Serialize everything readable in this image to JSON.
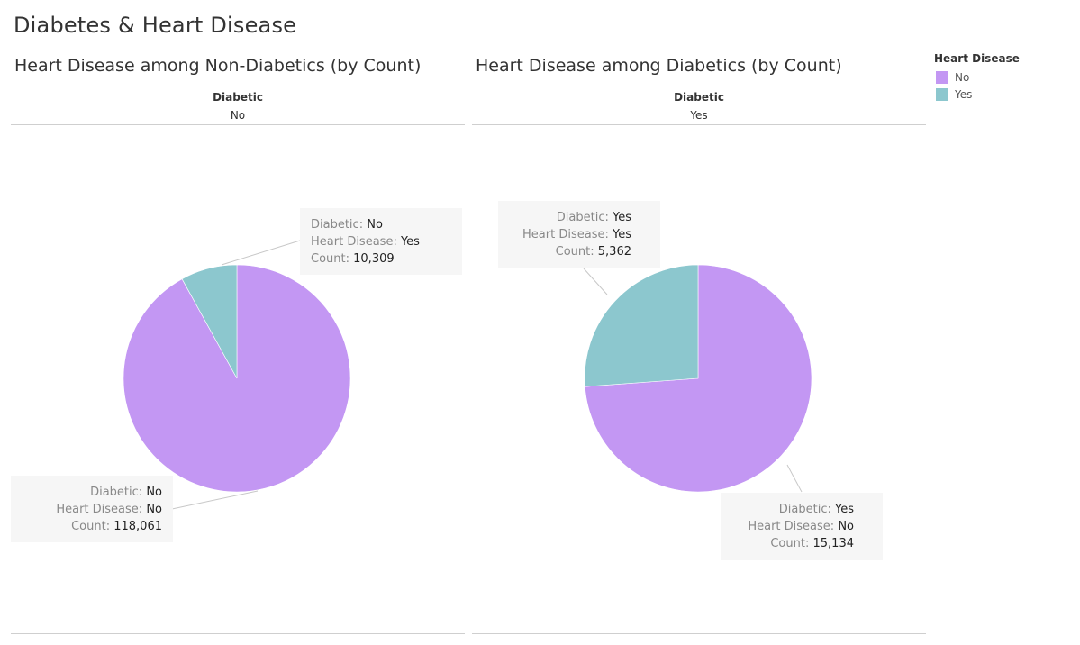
{
  "dashboard": {
    "title": "Diabetes & Heart Disease"
  },
  "legend": {
    "title": "Heart Disease",
    "items": [
      {
        "label": "No",
        "color": "#C397F3"
      },
      {
        "label": "Yes",
        "color": "#8CC7CE"
      }
    ]
  },
  "chart_data": [
    {
      "type": "pie",
      "title": "Heart Disease among Non-Diabetics (by Count)",
      "header_field": "Diabetic",
      "header_value": "No",
      "slices": [
        {
          "label": "No",
          "value": 118061,
          "color": "#C397F3"
        },
        {
          "label": "Yes",
          "value": 10309,
          "color": "#8CC7CE"
        }
      ],
      "annotations": [
        {
          "diabetic_label": "Diabetic:",
          "diabetic": "No",
          "hd_label": "Heart Disease:",
          "hd": "Yes",
          "count_label": "Count:",
          "count": "10,309"
        },
        {
          "diabetic_label": "Diabetic:",
          "diabetic": "No",
          "hd_label": "Heart Disease:",
          "hd": "No",
          "count_label": "Count:",
          "count": "118,061"
        }
      ]
    },
    {
      "type": "pie",
      "title": "Heart Disease among Diabetics (by Count)",
      "header_field": "Diabetic",
      "header_value": "Yes",
      "slices": [
        {
          "label": "No",
          "value": 15134,
          "color": "#C397F3"
        },
        {
          "label": "Yes",
          "value": 5362,
          "color": "#8CC7CE"
        }
      ],
      "annotations": [
        {
          "diabetic_label": "Diabetic:",
          "diabetic": "Yes",
          "hd_label": "Heart Disease:",
          "hd": "Yes",
          "count_label": "Count:",
          "count": "5,362"
        },
        {
          "diabetic_label": "Diabetic:",
          "diabetic": "Yes",
          "hd_label": "Heart Disease:",
          "hd": "No",
          "count_label": "Count:",
          "count": "15,134"
        }
      ]
    }
  ]
}
